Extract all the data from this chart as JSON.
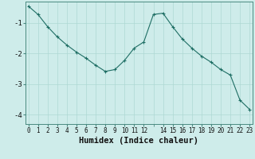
{
  "title": "",
  "xlabel": "Humidex (Indice chaleur)",
  "ylabel": "",
  "background_color": "#ceecea",
  "line_color": "#1e6e64",
  "marker_color": "#1e6e64",
  "grid_color": "#aed8d4",
  "axis_color": "#4a8a80",
  "x_values": [
    0,
    1,
    2,
    3,
    4,
    5,
    6,
    7,
    8,
    9,
    10,
    11,
    12,
    13,
    14,
    15,
    16,
    17,
    18,
    19,
    20,
    21,
    22,
    23
  ],
  "y_values": [
    -0.45,
    -0.72,
    -1.12,
    -1.45,
    -1.72,
    -1.95,
    -2.15,
    -2.38,
    -2.58,
    -2.52,
    -2.22,
    -1.82,
    -1.62,
    -0.72,
    -0.68,
    -1.12,
    -1.52,
    -1.82,
    -2.08,
    -2.28,
    -2.52,
    -2.7,
    -3.52,
    -3.82
  ],
  "ylim": [
    -4.3,
    -0.3
  ],
  "xlim": [
    -0.3,
    23.3
  ],
  "yticks": [
    -4,
    -3,
    -2,
    -1
  ],
  "xtick_positions": [
    0,
    1,
    2,
    3,
    4,
    5,
    6,
    7,
    8,
    9,
    10,
    11,
    12,
    14,
    15,
    16,
    17,
    18,
    19,
    20,
    21,
    22,
    23
  ],
  "xtick_labels": [
    "0",
    "1",
    "2",
    "3",
    "4",
    "5",
    "6",
    "7",
    "8",
    "9",
    "10",
    "11",
    "12",
    "14",
    "15",
    "16",
    "17",
    "18",
    "19",
    "20",
    "21",
    "22",
    "23"
  ]
}
